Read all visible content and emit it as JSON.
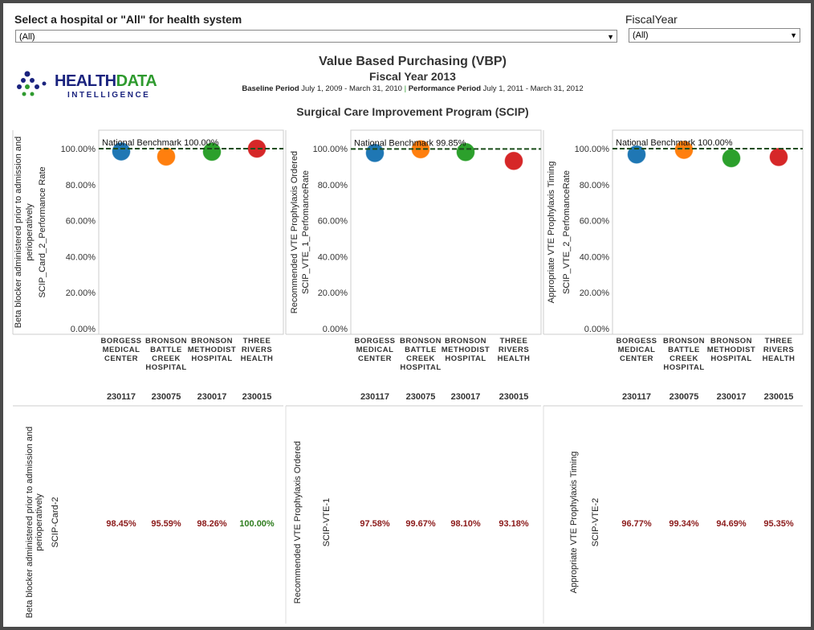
{
  "filters": {
    "hospital_label": "Select a hospital or \"All\" for health system",
    "hospital_value": "(All)",
    "fy_label": "FiscalYear",
    "fy_value": "(All)"
  },
  "logo": {
    "health": "HEALTH",
    "data": "DATA",
    "intelligence": "INTELLIGENCE"
  },
  "header": {
    "title": "Value Based Purchasing (VBP)",
    "subtitle": "Fiscal Year 2013",
    "baseline_label": "Baseline Period",
    "baseline_value": "July 1, 2009 - March 31, 2010",
    "sep": "|",
    "performance_label": "Performance Period",
    "performance_value": "July 1, 2011 - March 31, 2012",
    "section": "Surgical Care Improvement Program (SCIP)"
  },
  "hospitals": [
    {
      "name": [
        "BORGESS",
        "MEDICAL",
        "CENTER"
      ],
      "id": "230117",
      "color": "#1f77b4"
    },
    {
      "name": [
        "BRONSON",
        "BATTLE",
        "CREEK",
        "HOSPITAL"
      ],
      "id": "230075",
      "color": "#ff7f0e"
    },
    {
      "name": [
        "BRONSON",
        "METHODIST",
        "HOSPITAL"
      ],
      "id": "230017",
      "color": "#2ca02c"
    },
    {
      "name": [
        "THREE",
        "RIVERS",
        "HEALTH"
      ],
      "id": "230015",
      "color": "#d62728"
    }
  ],
  "y_ticks": [
    "0.00%",
    "20.00%",
    "40.00%",
    "60.00%",
    "80.00%",
    "100.00%"
  ],
  "chart_data": [
    {
      "type": "scatter",
      "measure": [
        "Beta blocker administered prior to admission and",
        "perioperatively"
      ],
      "field": "SCIP_Card_2_Performance Rate",
      "code": "SCIP-Card-2",
      "benchmark": 100.0,
      "benchmark_label": "National Benchmark 100.00%",
      "values": [
        98.45,
        95.59,
        98.26,
        100.0
      ],
      "labels": [
        "98.45%",
        "95.59%",
        "98.26%",
        "100.00%"
      ],
      "ylim": [
        0,
        100
      ]
    },
    {
      "type": "scatter",
      "measure": [
        "Recommended VTE Prophylaxis Ordered"
      ],
      "field": "SCIP_VTE_1_PerfomanceRate",
      "code": "SCIP-VTE-1",
      "benchmark": 99.85,
      "benchmark_label": "National Benchmark 99.85%",
      "values": [
        97.58,
        99.67,
        98.1,
        93.18
      ],
      "labels": [
        "97.58%",
        "99.67%",
        "98.10%",
        "93.18%"
      ],
      "ylim": [
        0,
        100
      ]
    },
    {
      "type": "scatter",
      "measure": [
        "Appropriate VTE Prophylaxis Timing"
      ],
      "field": "SCIP_VTE_2_PerfomanceRate",
      "code": "SCIP-VTE-2",
      "benchmark": 100.0,
      "benchmark_label": "National Benchmark 100.00%",
      "values": [
        96.77,
        99.34,
        94.69,
        95.35
      ],
      "labels": [
        "96.77%",
        "99.34%",
        "94.69%",
        "95.35%"
      ],
      "ylim": [
        0,
        100
      ]
    }
  ],
  "colors": {
    "value_below": "#8b1a1a",
    "value_met": "#2e7d1e",
    "benchmark": "#1b4d1b"
  }
}
